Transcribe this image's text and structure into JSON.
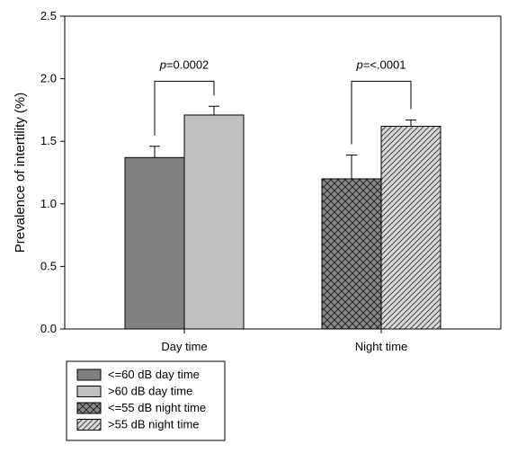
{
  "chart_data": {
    "type": "bar",
    "title": "",
    "ylabel": "Prevalence of intertility (%)",
    "xlabel": "",
    "ylim": [
      0,
      2.5
    ],
    "yticks": [
      "0.0",
      "0.5",
      "1.0",
      "1.5",
      "2.0",
      "2.5"
    ],
    "grid": false,
    "legend_placement": "below",
    "groups": [
      {
        "label": "Day time",
        "bars": [
          {
            "series": "<=60 dB day time",
            "value": 1.37,
            "error": 0.09,
            "fill": "solid-dark",
            "color": "#808080"
          },
          {
            "series": ">60 dB day time",
            "value": 1.71,
            "error": 0.07,
            "fill": "solid-light",
            "color": "#c0c0c0"
          }
        ],
        "p_prefix": "p",
        "p_rest": "=0.0002"
      },
      {
        "label": "Night time",
        "bars": [
          {
            "series": "<=55 dB night time",
            "value": 1.2,
            "error": 0.19,
            "fill": "crosshatch",
            "color": "#808080"
          },
          {
            "series": ">55 dB night time",
            "value": 1.62,
            "error": 0.05,
            "fill": "diagonal",
            "color": "#c0c0c0"
          }
        ],
        "p_prefix": "p",
        "p_rest": "=<.0001"
      }
    ],
    "legend": [
      {
        "label": "<=60 dB day time",
        "fill": "solid-dark"
      },
      {
        "label": ">60 dB day time",
        "fill": "solid-light"
      },
      {
        "label": "<=55 dB night time",
        "fill": "crosshatch"
      },
      {
        "label": ">55 dB night time",
        "fill": "diagonal"
      }
    ]
  }
}
